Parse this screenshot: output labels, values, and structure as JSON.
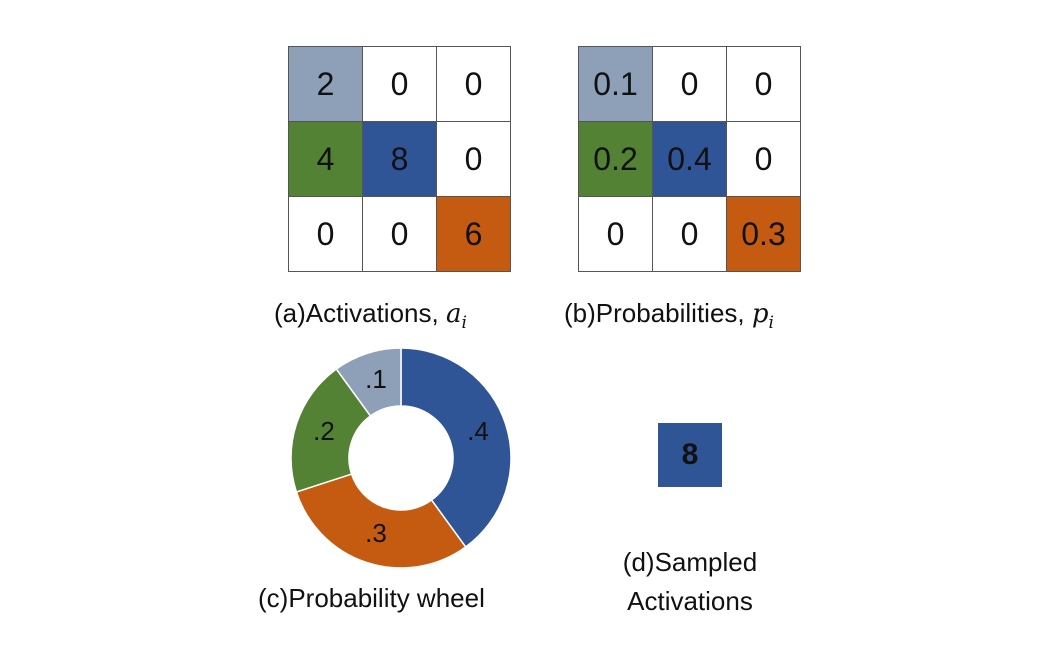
{
  "colors": {
    "gray_blue": "#8da0b8",
    "green": "#548235",
    "blue": "#2f5597",
    "orange": "#c55a11",
    "white": "#ffffff"
  },
  "activations": {
    "caption_text": "(a)Activations, ",
    "caption_math": "a",
    "caption_sub": "i",
    "cells": [
      {
        "value": "2",
        "color": "#8da0b8"
      },
      {
        "value": "0",
        "color": "#ffffff"
      },
      {
        "value": "0",
        "color": "#ffffff"
      },
      {
        "value": "4",
        "color": "#548235"
      },
      {
        "value": "8",
        "color": "#2f5597"
      },
      {
        "value": "0",
        "color": "#ffffff"
      },
      {
        "value": "0",
        "color": "#ffffff"
      },
      {
        "value": "0",
        "color": "#ffffff"
      },
      {
        "value": "6",
        "color": "#c55a11"
      }
    ]
  },
  "probabilities": {
    "caption_text": "(b)Probabilities, ",
    "caption_math": "p",
    "caption_sub": "i",
    "cells": [
      {
        "value": "0.1",
        "color": "#8da0b8"
      },
      {
        "value": "0",
        "color": "#ffffff"
      },
      {
        "value": "0",
        "color": "#ffffff"
      },
      {
        "value": "0.2",
        "color": "#548235"
      },
      {
        "value": "0.4",
        "color": "#2f5597"
      },
      {
        "value": "0",
        "color": "#ffffff"
      },
      {
        "value": "0",
        "color": "#ffffff"
      },
      {
        "value": "0",
        "color": "#ffffff"
      },
      {
        "value": "0.3",
        "color": "#c55a11"
      }
    ]
  },
  "wheel": {
    "caption": "(c)Probability wheel",
    "slices": [
      {
        "label": ".4",
        "value": 0.4,
        "color": "#2f5597"
      },
      {
        "label": ".3",
        "value": 0.3,
        "color": "#c55a11"
      },
      {
        "label": ".2",
        "value": 0.2,
        "color": "#548235"
      },
      {
        "label": ".1",
        "value": 0.1,
        "color": "#8da0b8"
      }
    ]
  },
  "sampled": {
    "value": "8",
    "color": "#2f5597",
    "caption": "(d)Sampled Activations"
  }
}
